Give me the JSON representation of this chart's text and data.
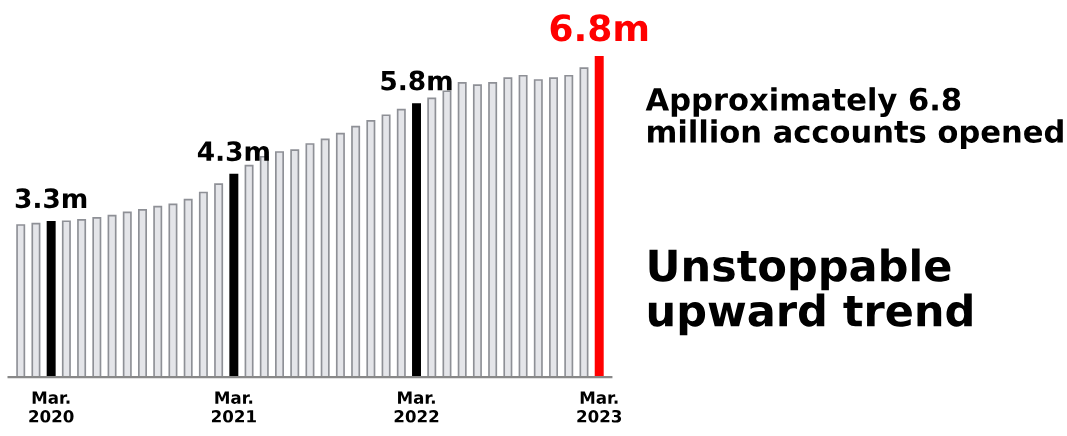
{
  "chart_data": {
    "type": "bar",
    "categories": [
      null,
      null,
      "Mar.\n2020",
      null,
      null,
      null,
      null,
      null,
      null,
      null,
      null,
      null,
      null,
      null,
      "Mar.\n2021",
      null,
      null,
      null,
      null,
      null,
      null,
      null,
      null,
      null,
      null,
      null,
      "Mar.\n2022",
      null,
      null,
      null,
      null,
      null,
      null,
      null,
      null,
      null,
      null,
      null,
      "Mar.\n2023"
    ],
    "values": [
      3.23,
      3.26,
      3.3,
      3.31,
      3.34,
      3.38,
      3.43,
      3.5,
      3.55,
      3.62,
      3.67,
      3.77,
      3.92,
      4.1,
      4.3,
      4.49,
      4.68,
      4.78,
      4.82,
      4.95,
      5.05,
      5.17,
      5.32,
      5.44,
      5.56,
      5.68,
      5.8,
      5.92,
      6.07,
      6.25,
      6.2,
      6.25,
      6.35,
      6.4,
      6.31,
      6.35,
      6.4,
      6.56,
      6.8
    ],
    "colors": [
      "#e4e5e9",
      "#e4e5e9",
      "#000000",
      "#e4e5e9",
      "#e4e5e9",
      "#e4e5e9",
      "#e4e5e9",
      "#e4e5e9",
      "#e4e5e9",
      "#e4e5e9",
      "#e4e5e9",
      "#e4e5e9",
      "#e4e5e9",
      "#e4e5e9",
      "#000000",
      "#e4e5e9",
      "#e4e5e9",
      "#e4e5e9",
      "#e4e5e9",
      "#e4e5e9",
      "#e4e5e9",
      "#e4e5e9",
      "#e4e5e9",
      "#e4e5e9",
      "#e4e5e9",
      "#e4e5e9",
      "#000000",
      "#e4e5e9",
      "#e4e5e9",
      "#e4e5e9",
      "#e4e5e9",
      "#e4e5e9",
      "#e4e5e9",
      "#e4e5e9",
      "#e4e5e9",
      "#e4e5e9",
      "#e4e5e9",
      "#e4e5e9",
      "#ff0000"
    ],
    "value_labels": [
      null,
      null,
      "3.3m",
      null,
      null,
      null,
      null,
      null,
      null,
      null,
      null,
      null,
      null,
      null,
      "4.3m",
      null,
      null,
      null,
      null,
      null,
      null,
      null,
      null,
      null,
      null,
      null,
      "5.8m",
      null,
      null,
      null,
      null,
      null,
      null,
      null,
      null,
      null,
      null,
      null,
      "6.8m"
    ],
    "annotations": [
      "Approximately 6.8 million accounts opened",
      "Unstoppable upward trend"
    ],
    "grid": false,
    "legend": false
  }
}
